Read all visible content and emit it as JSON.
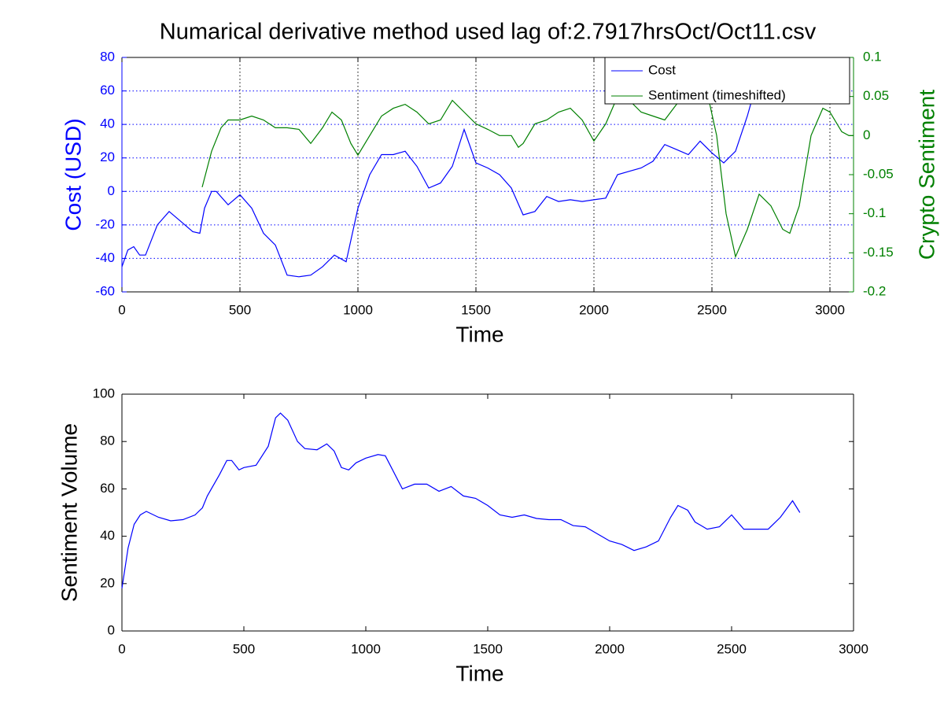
{
  "chart_data": [
    {
      "type": "line",
      "title": "Numarical derivative method used lag of:2.7917hrsOct/Oct11.csv",
      "xlabel": "Time",
      "ylabel": "Cost (USD)",
      "y2label": "Crypto Sentiment",
      "xlim": [
        0,
        3100
      ],
      "xticks": [
        0,
        500,
        1000,
        1500,
        2000,
        2500,
        3000
      ],
      "ylim": [
        -60,
        80
      ],
      "yticks": [
        -60,
        -40,
        -20,
        0,
        20,
        40,
        60,
        80
      ],
      "y2lim": [
        -0.2,
        0.1
      ],
      "y2ticks": [
        -0.2,
        -0.15,
        -0.1,
        -0.05,
        0,
        0.05,
        0.1
      ],
      "ycolor": "#0000ff",
      "y2color": "#008000",
      "grid": true,
      "legend": "upper right",
      "series": [
        {
          "name": "Cost",
          "color": "#0000ff",
          "x": [
            0,
            25,
            50,
            75,
            100,
            150,
            200,
            250,
            300,
            330,
            350,
            380,
            400,
            450,
            500,
            550,
            600,
            650,
            700,
            750,
            800,
            850,
            900,
            950,
            1000,
            1050,
            1100,
            1150,
            1200,
            1250,
            1300,
            1350,
            1400,
            1450,
            1500,
            1550,
            1600,
            1650,
            1700,
            1750,
            1800,
            1850,
            1900,
            1950,
            2000,
            2050,
            2100,
            2150,
            2200,
            2250,
            2300,
            2350,
            2400,
            2450,
            2500,
            2550,
            2600,
            2650,
            2700,
            2725,
            2750,
            2780
          ],
          "values": [
            -45,
            -35,
            -33,
            -38,
            -38,
            -20,
            -12,
            -18,
            -24,
            -25,
            -10,
            0,
            0,
            -8,
            -2,
            -10,
            -25,
            -32,
            -50,
            -51,
            -50,
            -45,
            -38,
            -42,
            -10,
            10,
            22,
            22,
            24,
            15,
            2,
            5,
            15,
            37,
            17,
            14,
            10,
            2,
            -14,
            -12,
            -3,
            -6,
            -5,
            -6,
            -5,
            -4,
            10,
            12,
            14,
            18,
            28,
            25,
            22,
            30,
            23,
            17,
            24,
            45,
            70,
            77,
            73,
            72
          ]
        },
        {
          "name": "Sentiment (timeshifted)",
          "color": "#008000",
          "axis": "y2",
          "x": [
            340,
            380,
            420,
            450,
            500,
            550,
            600,
            650,
            700,
            750,
            800,
            850,
            890,
            930,
            970,
            1000,
            1050,
            1100,
            1150,
            1200,
            1250,
            1300,
            1350,
            1400,
            1450,
            1500,
            1550,
            1600,
            1650,
            1680,
            1700,
            1750,
            1800,
            1850,
            1900,
            1950,
            2000,
            2050,
            2100,
            2150,
            2200,
            2250,
            2300,
            2350,
            2400,
            2450,
            2480,
            2520,
            2560,
            2600,
            2650,
            2700,
            2750,
            2800,
            2830,
            2870,
            2920,
            2970,
            3000,
            3050,
            3080,
            3100
          ],
          "values": [
            -0.066,
            -0.02,
            0.01,
            0.02,
            0.02,
            0.025,
            0.02,
            0.01,
            0.01,
            0.008,
            -0.01,
            0.01,
            0.03,
            0.02,
            -0.01,
            -0.025,
            0,
            0.025,
            0.035,
            0.04,
            0.03,
            0.015,
            0.02,
            0.045,
            0.03,
            0.015,
            0.008,
            0,
            0,
            -0.015,
            -0.01,
            0.015,
            0.02,
            0.03,
            0.035,
            0.02,
            -0.007,
            0.015,
            0.05,
            0.045,
            0.03,
            0.025,
            0.02,
            0.04,
            0.06,
            0.063,
            0.055,
            0,
            -0.1,
            -0.155,
            -0.12,
            -0.075,
            -0.09,
            -0.12,
            -0.125,
            -0.09,
            0,
            0.035,
            0.03,
            0.005,
            0,
            0
          ]
        }
      ]
    },
    {
      "type": "line",
      "xlabel": "Time",
      "ylabel": "Sentiment Volume",
      "xlim": [
        0,
        3000
      ],
      "xticks": [
        0,
        500,
        1000,
        1500,
        2000,
        2500,
        3000
      ],
      "ylim": [
        0,
        100
      ],
      "yticks": [
        0,
        20,
        40,
        60,
        80,
        100
      ],
      "ycolor": "#000000",
      "grid": false,
      "series": [
        {
          "color": "#0000ff",
          "x": [
            0,
            25,
            50,
            75,
            100,
            150,
            200,
            250,
            300,
            330,
            350,
            400,
            430,
            450,
            480,
            500,
            550,
            600,
            630,
            650,
            680,
            720,
            750,
            800,
            840,
            870,
            900,
            930,
            960,
            1000,
            1050,
            1080,
            1100,
            1150,
            1200,
            1250,
            1300,
            1350,
            1400,
            1450,
            1500,
            1550,
            1600,
            1650,
            1700,
            1750,
            1800,
            1850,
            1900,
            1950,
            2000,
            2050,
            2100,
            2150,
            2200,
            2250,
            2280,
            2320,
            2350,
            2400,
            2450,
            2500,
            2550,
            2600,
            2650,
            2700,
            2750,
            2780
          ],
          "values": [
            18,
            35,
            45,
            49,
            50.5,
            48,
            46.5,
            47,
            49,
            52,
            57,
            66,
            72,
            72,
            68,
            69,
            70,
            78,
            90,
            92,
            89,
            80,
            77,
            76.5,
            79,
            76,
            69,
            68,
            71,
            73,
            74.5,
            74,
            70,
            60,
            62,
            62,
            59,
            61,
            57,
            56,
            53,
            49,
            48,
            49,
            47.5,
            47,
            47,
            44.5,
            44,
            41,
            38,
            36.5,
            34,
            35.5,
            38,
            48,
            53,
            51,
            46,
            43,
            44,
            49,
            43,
            43,
            43,
            48,
            55,
            50
          ]
        }
      ]
    }
  ]
}
